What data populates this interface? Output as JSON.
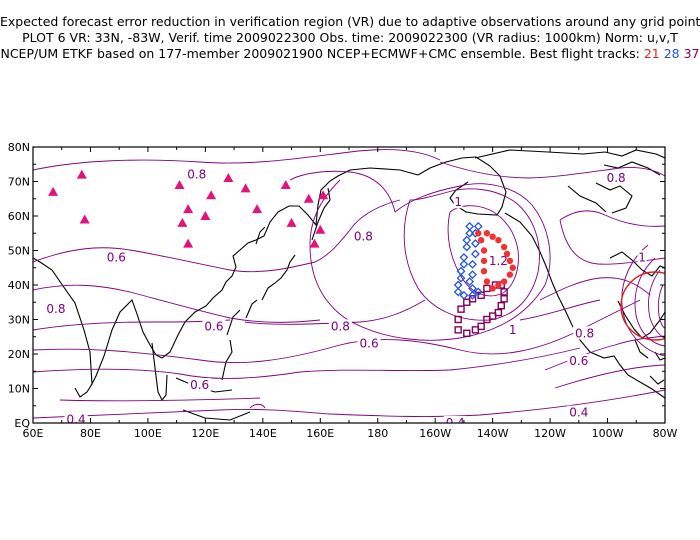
{
  "title": {
    "line1": "Expected forecast error reduction in verification region (VR) due to adaptive observations around any grid point.",
    "line2": "PLOT 6 VR: 33N, -83W, Verif. time 2009022300 Obs. time: 2009022300 (VR radius: 1000km) Norm: u,v,T",
    "line3_prefix": "NCEP/UM ETKF based on 177-member 2009021900 NCEP+ECMWF+CMC ensemble. Best flight tracks:",
    "track_red": "21",
    "track_blue": "28",
    "track_purple": "37"
  },
  "axes": {
    "lon_labels": [
      "60E",
      "80E",
      "100E",
      "120E",
      "140E",
      "160E",
      "180",
      "160W",
      "140W",
      "120W",
      "100W",
      "80W"
    ],
    "lat_labels": [
      "80N",
      "70N",
      "60N",
      "50N",
      "40N",
      "30N",
      "20N",
      "10N",
      "EQ"
    ]
  },
  "contour_labels": [
    {
      "text": "0.8",
      "lon": 117,
      "lat": 72
    },
    {
      "text": "0.6",
      "lon": 89,
      "lat": 48
    },
    {
      "text": "0.8",
      "lon": 68,
      "lat": 33
    },
    {
      "text": "0.6",
      "lon": 123,
      "lat": 28
    },
    {
      "text": "0.8",
      "lon": 167,
      "lat": 28
    },
    {
      "text": "0.6",
      "lon": 177,
      "lat": 23
    },
    {
      "text": "0.6",
      "lon": 118,
      "lat": 11
    },
    {
      "text": "0.4",
      "lon": 75,
      "lat": 1
    },
    {
      "text": "0.8",
      "lon": 175,
      "lat": 54
    },
    {
      "text": "1",
      "lon": 208,
      "lat": 64
    },
    {
      "text": "1.2",
      "lon": 222,
      "lat": 47
    },
    {
      "text": "1",
      "lon": 227,
      "lat": 27
    },
    {
      "text": "0.8",
      "lon": 263,
      "lat": 71
    },
    {
      "text": "1",
      "lon": 272,
      "lat": 48
    },
    {
      "text": "0.8",
      "lon": 252,
      "lat": 26
    },
    {
      "text": "0.6",
      "lon": 250,
      "lat": 18
    },
    {
      "text": "0.4",
      "lon": 250,
      "lat": 3
    },
    {
      "text": "0.4",
      "lon": 207,
      "lat": 0
    }
  ],
  "triangles": [
    [
      67,
      67
    ],
    [
      77,
      72
    ],
    [
      78,
      59
    ],
    [
      111,
      69
    ],
    [
      114,
      62
    ],
    [
      112,
      58
    ],
    [
      120,
      60
    ],
    [
      114,
      52
    ],
    [
      122,
      66
    ],
    [
      128,
      71
    ],
    [
      134,
      68
    ],
    [
      138,
      62
    ],
    [
      148,
      69
    ],
    [
      150,
      58
    ],
    [
      156,
      65
    ],
    [
      161,
      66
    ],
    [
      160,
      56
    ],
    [
      158,
      52
    ]
  ],
  "track_red_points": [
    [
      218,
      55
    ],
    [
      220,
      54
    ],
    [
      222,
      53
    ],
    [
      224,
      51
    ],
    [
      225,
      49
    ],
    [
      226,
      47
    ],
    [
      227,
      45
    ],
    [
      226,
      43
    ],
    [
      224,
      41
    ],
    [
      222,
      40
    ],
    [
      220,
      39
    ],
    [
      218,
      41
    ],
    [
      217,
      44
    ],
    [
      217,
      47
    ],
    [
      217,
      50
    ],
    [
      216,
      53
    ],
    [
      215,
      55
    ]
  ],
  "track_blue_points": [
    [
      212,
      57
    ],
    [
      212,
      55
    ],
    [
      211,
      53
    ],
    [
      211,
      51
    ],
    [
      210,
      48
    ],
    [
      210,
      46
    ],
    [
      209,
      44
    ],
    [
      209,
      42
    ],
    [
      208,
      40
    ],
    [
      208,
      38
    ],
    [
      210,
      37
    ],
    [
      213,
      37
    ],
    [
      215,
      38
    ],
    [
      213,
      39
    ],
    [
      212,
      41
    ],
    [
      213,
      43
    ],
    [
      213,
      46
    ],
    [
      214,
      49
    ],
    [
      214,
      52
    ],
    [
      214,
      55
    ],
    [
      215,
      57
    ]
  ],
  "track_purple_points": [
    [
      208,
      27
    ],
    [
      208,
      30
    ],
    [
      209,
      33
    ],
    [
      211,
      35
    ],
    [
      213,
      36
    ],
    [
      216,
      37
    ],
    [
      218,
      39
    ],
    [
      221,
      40
    ],
    [
      223,
      40
    ],
    [
      224,
      38
    ],
    [
      224,
      36
    ],
    [
      223,
      34
    ],
    [
      222,
      32
    ],
    [
      220,
      31
    ],
    [
      218,
      30
    ],
    [
      216,
      28
    ],
    [
      214,
      27
    ],
    [
      211,
      26
    ]
  ],
  "colors": {
    "contour": "#800080",
    "triangle": "#e0147c",
    "track_red": "#ee3333",
    "track_blue": "#2255dd",
    "track_purple": "#800060",
    "verification_circle": "#e02020"
  }
}
